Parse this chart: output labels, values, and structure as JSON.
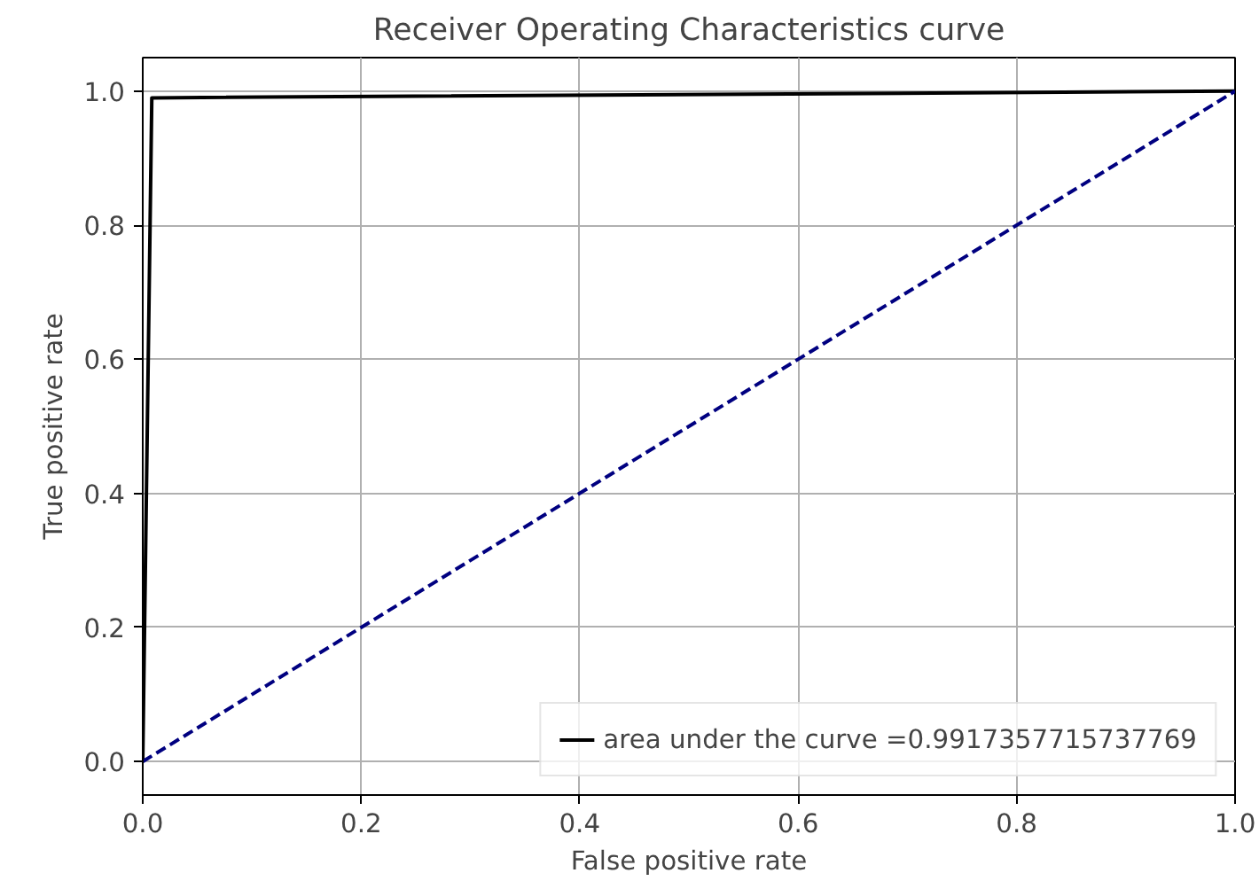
{
  "chart_data": {
    "type": "line",
    "title": "Receiver Operating Characteristics curve",
    "xlabel": "False positive rate",
    "ylabel": "True positive rate",
    "series": [
      {
        "name": "area under the curve =0.9917357715737769",
        "color": "#000000",
        "x": [
          0,
          0.0083,
          1
        ],
        "values": [
          0,
          0.99,
          1
        ],
        "line_style": "solid"
      },
      {
        "color": "#000080",
        "x": [
          0,
          1
        ],
        "values": [
          0,
          1
        ],
        "line_style": "dashed"
      }
    ],
    "xlim": [
      0,
      1
    ],
    "ylim": [
      -0.05,
      1.05
    ],
    "xticks": [
      {
        "value": 0,
        "label": "0.0"
      },
      0.2,
      0.4,
      0.6,
      0.8,
      {
        "value": 1,
        "label": "1.0"
      }
    ],
    "yticks": [
      {
        "value": 0,
        "label": "0.0"
      },
      0.2,
      0.4,
      0.6,
      0.8,
      {
        "value": 1,
        "label": "1.0"
      }
    ],
    "grid": true,
    "legend": "bottom right",
    "marker": "none"
  }
}
